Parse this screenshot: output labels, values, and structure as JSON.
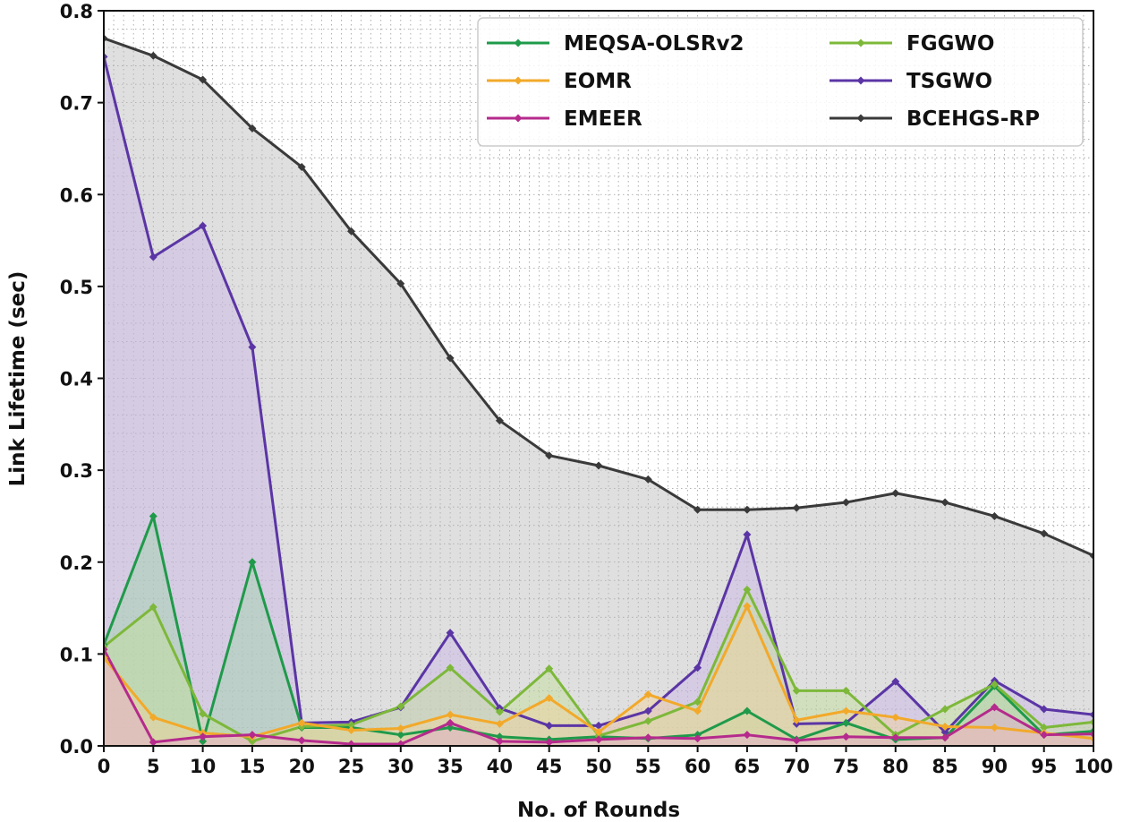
{
  "chart_data": {
    "type": "line",
    "title": "",
    "xlabel": "No. of Rounds",
    "ylabel": "Link Lifetime (sec)",
    "x": [
      0,
      5,
      10,
      15,
      20,
      25,
      30,
      35,
      40,
      45,
      50,
      55,
      60,
      65,
      70,
      75,
      80,
      85,
      90,
      95,
      100
    ],
    "xlim": [
      0,
      100
    ],
    "ylim": [
      0,
      0.8
    ],
    "xticks": [
      "0",
      "5",
      "10",
      "15",
      "20",
      "25",
      "30",
      "35",
      "40",
      "45",
      "50",
      "55",
      "60",
      "65",
      "70",
      "75",
      "80",
      "85",
      "90",
      "95",
      "100"
    ],
    "yticks": [
      "0.0",
      "0.1",
      "0.2",
      "0.3",
      "0.4",
      "0.5",
      "0.6",
      "0.7",
      "0.8"
    ],
    "grid": true,
    "legend_position": "top-right",
    "series": [
      {
        "name": "BCEHGS-RP",
        "color": "#3a3a3a",
        "fill": "#b8b8b8",
        "values": [
          0.77,
          0.751,
          0.725,
          0.672,
          0.63,
          0.56,
          0.503,
          0.422,
          0.354,
          0.316,
          0.305,
          0.29,
          0.257,
          0.257,
          0.259,
          0.265,
          0.275,
          0.265,
          0.25,
          0.231,
          0.207
        ]
      },
      {
        "name": "TSGWO",
        "color": "#5b35a5",
        "fill": "#c9b5e8",
        "values": [
          0.75,
          0.532,
          0.566,
          0.434,
          0.025,
          0.026,
          0.042,
          0.123,
          0.041,
          0.022,
          0.022,
          0.038,
          0.085,
          0.23,
          0.024,
          0.025,
          0.07,
          0.015,
          0.071,
          0.04,
          0.034
        ]
      },
      {
        "name": "MEQSA-OLSRv2",
        "color": "#1f9a4a",
        "fill": "#9fd3a8",
        "values": [
          0.11,
          0.25,
          0.005,
          0.2,
          0.02,
          0.02,
          0.012,
          0.02,
          0.01,
          0.007,
          0.01,
          0.008,
          0.012,
          0.038,
          0.007,
          0.025,
          0.007,
          0.009,
          0.065,
          0.012,
          0.016
        ]
      },
      {
        "name": "FGGWO",
        "color": "#7db83a",
        "fill": "#c4e09a",
        "values": [
          0.108,
          0.151,
          0.035,
          0.005,
          0.021,
          0.023,
          0.043,
          0.085,
          0.037,
          0.084,
          0.011,
          0.027,
          0.048,
          0.17,
          0.06,
          0.06,
          0.012,
          0.04,
          0.067,
          0.02,
          0.026
        ]
      },
      {
        "name": "EOMR",
        "color": "#f2a92a",
        "fill": "#f5d39a",
        "values": [
          0.096,
          0.031,
          0.014,
          0.01,
          0.025,
          0.017,
          0.019,
          0.034,
          0.024,
          0.052,
          0.015,
          0.056,
          0.038,
          0.152,
          0.028,
          0.038,
          0.031,
          0.021,
          0.02,
          0.014,
          0.008
        ]
      },
      {
        "name": "EMEER",
        "color": "#b52a8c",
        "fill": "#e6a8d2",
        "values": [
          0.105,
          0.004,
          0.01,
          0.012,
          0.006,
          0.002,
          0.002,
          0.025,
          0.005,
          0.004,
          0.007,
          0.009,
          0.008,
          0.012,
          0.006,
          0.01,
          0.009,
          0.009,
          0.042,
          0.012,
          0.013
        ]
      }
    ],
    "legend_order": [
      "MEQSA-OLSRv2",
      "EOMR",
      "EMEER",
      "FGGWO",
      "TSGWO",
      "BCEHGS-RP"
    ]
  }
}
